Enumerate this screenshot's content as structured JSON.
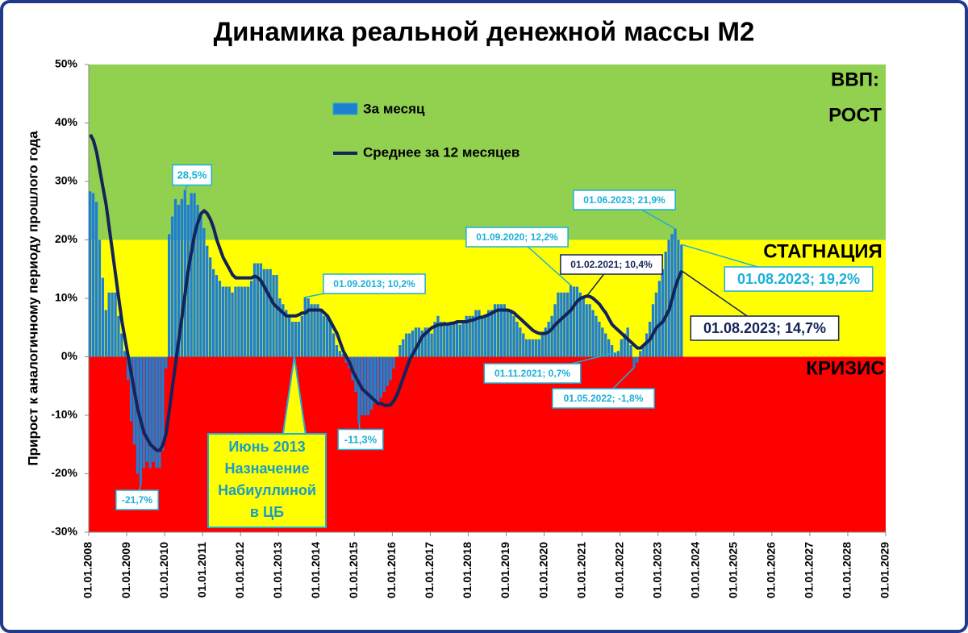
{
  "chart_data": {
    "type": "bar",
    "title": "Динамика реальной денежной массы М2",
    "y_label": "Прирост к аналогичному периоду прошлого года",
    "ylim": [
      -30,
      50
    ],
    "yticks": [
      {
        "value": -30,
        "label": "-30%"
      },
      {
        "value": -20,
        "label": "-20%"
      },
      {
        "value": -10,
        "label": "-10%"
      },
      {
        "value": 0,
        "label": "0%"
      },
      {
        "value": 10,
        "label": "10%"
      },
      {
        "value": 20,
        "label": "20%"
      },
      {
        "value": 30,
        "label": "30%"
      },
      {
        "value": 40,
        "label": "40%"
      },
      {
        "value": 50,
        "label": "50%"
      }
    ],
    "xlim": [
      "2008-01-01",
      "2029-01-01"
    ],
    "xticks": [
      {
        "value": "2008-01-01",
        "label": "01.01.2008"
      },
      {
        "value": "2009-01-01",
        "label": "01.01.2009"
      },
      {
        "value": "2010-01-01",
        "label": "01.01.2010"
      },
      {
        "value": "2011-01-01",
        "label": "01.01.2011"
      },
      {
        "value": "2012-01-01",
        "label": "01.01.2012"
      },
      {
        "value": "2013-01-01",
        "label": "01.01.2013"
      },
      {
        "value": "2014-01-01",
        "label": "01.01.2014"
      },
      {
        "value": "2015-01-01",
        "label": "01.01.2015"
      },
      {
        "value": "2016-01-01",
        "label": "01.01.2016"
      },
      {
        "value": "2017-01-01",
        "label": "01.01.2017"
      },
      {
        "value": "2018-01-01",
        "label": "01.01.2018"
      },
      {
        "value": "2019-01-01",
        "label": "01.01.2019"
      },
      {
        "value": "2020-01-01",
        "label": "01.01.2020"
      },
      {
        "value": "2021-01-01",
        "label": "01.01.2021"
      },
      {
        "value": "2022-01-01",
        "label": "01.01.2022"
      },
      {
        "value": "2023-01-01",
        "label": "01.01.2023"
      },
      {
        "value": "2024-01-01",
        "label": "01.01.2024"
      },
      {
        "value": "2025-01-01",
        "label": "01.01.2025"
      },
      {
        "value": "2026-01-01",
        "label": "01.01.2026"
      },
      {
        "value": "2027-01-01",
        "label": "01.01.2027"
      },
      {
        "value": "2028-01-01",
        "label": "01.01.2028"
      },
      {
        "value": "2029-01-01",
        "label": "01.01.2029"
      }
    ],
    "bands": [
      {
        "from": 20,
        "to": 50,
        "color": "#92d050",
        "labels": [
          "ВВП:",
          "РОСТ"
        ]
      },
      {
        "from": 0,
        "to": 20,
        "color": "#ffff00",
        "labels": [
          "СТАГНАЦИЯ"
        ]
      },
      {
        "from": -30,
        "to": 0,
        "color": "#ff0000",
        "labels": [
          "КРИЗИС"
        ]
      }
    ],
    "x": [
      "2008-01-01",
      "2008-02-01",
      "2008-03-01",
      "2008-04-01",
      "2008-05-01",
      "2008-06-01",
      "2008-07-01",
      "2008-08-01",
      "2008-09-01",
      "2008-10-01",
      "2008-11-01",
      "2008-12-01",
      "2009-01-01",
      "2009-02-01",
      "2009-03-01",
      "2009-04-01",
      "2009-05-01",
      "2009-06-01",
      "2009-07-01",
      "2009-08-01",
      "2009-09-01",
      "2009-10-01",
      "2009-11-01",
      "2009-12-01",
      "2010-01-01",
      "2010-02-01",
      "2010-03-01",
      "2010-04-01",
      "2010-05-01",
      "2010-06-01",
      "2010-07-01",
      "2010-08-01",
      "2010-09-01",
      "2010-10-01",
      "2010-11-01",
      "2010-12-01",
      "2011-01-01",
      "2011-02-01",
      "2011-03-01",
      "2011-04-01",
      "2011-05-01",
      "2011-06-01",
      "2011-07-01",
      "2011-08-01",
      "2011-09-01",
      "2011-10-01",
      "2011-11-01",
      "2011-12-01",
      "2012-01-01",
      "2012-02-01",
      "2012-03-01",
      "2012-04-01",
      "2012-05-01",
      "2012-06-01",
      "2012-07-01",
      "2012-08-01",
      "2012-09-01",
      "2012-10-01",
      "2012-11-01",
      "2012-12-01",
      "2013-01-01",
      "2013-02-01",
      "2013-03-01",
      "2013-04-01",
      "2013-05-01",
      "2013-06-01",
      "2013-07-01",
      "2013-08-01",
      "2013-09-01",
      "2013-10-01",
      "2013-11-01",
      "2013-12-01",
      "2014-01-01",
      "2014-02-01",
      "2014-03-01",
      "2014-04-01",
      "2014-05-01",
      "2014-06-01",
      "2014-07-01",
      "2014-08-01",
      "2014-09-01",
      "2014-10-01",
      "2014-11-01",
      "2014-12-01",
      "2015-01-01",
      "2015-02-01",
      "2015-03-01",
      "2015-04-01",
      "2015-05-01",
      "2015-06-01",
      "2015-07-01",
      "2015-08-01",
      "2015-09-01",
      "2015-10-01",
      "2015-11-01",
      "2015-12-01",
      "2016-01-01",
      "2016-02-01",
      "2016-03-01",
      "2016-04-01",
      "2016-05-01",
      "2016-06-01",
      "2016-07-01",
      "2016-08-01",
      "2016-09-01",
      "2016-10-01",
      "2016-11-01",
      "2016-12-01",
      "2017-01-01",
      "2017-02-01",
      "2017-03-01",
      "2017-04-01",
      "2017-05-01",
      "2017-06-01",
      "2017-07-01",
      "2017-08-01",
      "2017-09-01",
      "2017-10-01",
      "2017-11-01",
      "2017-12-01",
      "2018-01-01",
      "2018-02-01",
      "2018-03-01",
      "2018-04-01",
      "2018-05-01",
      "2018-06-01",
      "2018-07-01",
      "2018-08-01",
      "2018-09-01",
      "2018-10-01",
      "2018-11-01",
      "2018-12-01",
      "2019-01-01",
      "2019-02-01",
      "2019-03-01",
      "2019-04-01",
      "2019-05-01",
      "2019-06-01",
      "2019-07-01",
      "2019-08-01",
      "2019-09-01",
      "2019-10-01",
      "2019-11-01",
      "2019-12-01",
      "2020-01-01",
      "2020-02-01",
      "2020-03-01",
      "2020-04-01",
      "2020-05-01",
      "2020-06-01",
      "2020-07-01",
      "2020-08-01",
      "2020-09-01",
      "2020-10-01",
      "2020-11-01",
      "2020-12-01",
      "2021-01-01",
      "2021-02-01",
      "2021-03-01",
      "2021-04-01",
      "2021-05-01",
      "2021-06-01",
      "2021-07-01",
      "2021-08-01",
      "2021-09-01",
      "2021-10-01",
      "2021-11-01",
      "2021-12-01",
      "2022-01-01",
      "2022-02-01",
      "2022-03-01",
      "2022-04-01",
      "2022-05-01",
      "2022-06-01",
      "2022-07-01",
      "2022-08-01",
      "2022-09-01",
      "2022-10-01",
      "2022-11-01",
      "2022-12-01",
      "2023-01-01",
      "2023-02-01",
      "2023-03-01",
      "2023-04-01",
      "2023-05-01",
      "2023-06-01",
      "2023-07-01",
      "2023-08-01"
    ],
    "series": [
      {
        "name": "За месяц",
        "type": "bar",
        "color": "#1f7fd0",
        "values": [
          28.3,
          28,
          26.5,
          20,
          13.5,
          8,
          11,
          11,
          11,
          7,
          4,
          1,
          -4,
          -11,
          -15,
          -20,
          -21.7,
          -19,
          -18,
          -19,
          -18,
          -19,
          -19,
          -16,
          -2,
          21,
          24,
          27,
          26,
          27,
          28.5,
          26,
          28,
          28,
          26,
          24,
          22,
          19,
          17,
          15,
          14,
          13,
          12,
          12,
          12,
          11,
          12,
          12,
          12,
          12,
          12,
          13,
          16,
          16,
          16,
          15,
          15,
          15,
          14,
          14,
          10,
          9,
          8,
          7,
          6,
          6,
          6,
          7,
          10.2,
          10,
          9,
          9,
          9,
          8,
          7,
          7,
          6,
          4,
          2,
          1,
          0.5,
          -1,
          -2,
          -4,
          -6,
          -11.3,
          -10,
          -10,
          -10,
          -9,
          -8,
          -8,
          -7,
          -6,
          -5,
          -4,
          -2,
          0,
          2,
          3,
          4,
          4,
          4.5,
          5,
          5,
          4.5,
          5,
          5,
          4,
          6,
          7,
          6,
          6,
          5.5,
          6,
          6,
          6,
          5.5,
          6,
          7,
          7,
          7,
          8,
          8,
          7,
          7,
          8,
          8,
          9,
          9,
          9,
          9,
          8,
          8,
          7,
          6,
          5,
          4,
          3,
          3,
          3,
          3,
          3,
          4,
          5,
          6,
          7,
          9,
          11,
          11,
          11,
          11,
          12.2,
          12,
          12,
          11,
          10,
          9,
          9,
          8,
          7,
          6,
          5,
          4,
          3,
          2,
          0.7,
          1,
          3,
          4,
          5,
          2,
          -1.8,
          -1,
          1,
          2,
          4,
          6,
          9,
          11,
          13,
          15,
          18,
          20,
          21,
          21.9,
          20,
          19.2
        ]
      },
      {
        "name": "Среднее за 12 месяцев",
        "type": "line",
        "color": "#14235a",
        "values": [
          38,
          37,
          35,
          32,
          29,
          26,
          22,
          18,
          14,
          10,
          6,
          3,
          0,
          -3,
          -6,
          -9,
          -11,
          -13,
          -14,
          -15,
          -15.5,
          -16,
          -16,
          -15,
          -13,
          -9,
          -5,
          -1,
          3,
          7,
          11,
          15,
          18,
          21,
          23,
          24.5,
          25,
          24.5,
          23.5,
          22,
          20,
          18.5,
          17,
          16,
          15,
          14,
          13.5,
          13.5,
          13.5,
          13.5,
          13.5,
          13.5,
          13.8,
          13.5,
          13,
          12,
          11,
          10,
          9,
          8.5,
          8,
          7.5,
          7,
          7,
          7,
          7,
          7.2,
          7.5,
          7.5,
          8,
          8,
          8,
          8,
          8,
          7.5,
          7,
          6,
          5,
          4,
          2.5,
          1,
          0,
          -1,
          -2.5,
          -3.5,
          -4.5,
          -5.5,
          -6,
          -6.5,
          -7,
          -7.5,
          -8,
          -8,
          -8.3,
          -8.3,
          -8.2,
          -7.5,
          -6.5,
          -5,
          -3.5,
          -2,
          -0.5,
          0.5,
          1.5,
          2.5,
          3.5,
          4,
          4.5,
          5,
          5.2,
          5.5,
          5.5,
          5.6,
          5.6,
          5.7,
          5.8,
          6,
          6,
          6,
          6,
          6.2,
          6.3,
          6.5,
          6.7,
          6.8,
          7,
          7.2,
          7.5,
          7.8,
          8,
          8,
          8,
          8,
          7.8,
          7.5,
          7,
          6.5,
          6,
          5.5,
          5,
          4.5,
          4.2,
          4,
          4,
          4,
          4.3,
          4.8,
          5.5,
          6,
          6.5,
          7,
          7.5,
          8,
          8.8,
          9.5,
          10,
          10.2,
          10.4,
          10.3,
          10,
          9.5,
          9,
          8.2,
          7.5,
          6.5,
          5.5,
          5,
          4.5,
          4,
          3.5,
          3,
          2.5,
          2,
          1.5,
          1.5,
          2,
          2.5,
          3,
          4,
          5,
          5.5,
          6,
          7,
          8,
          10,
          12,
          13.5,
          14.7
        ]
      }
    ],
    "annotations": [
      {
        "text": "-21,7%",
        "x": "2009-05-01",
        "y": -21.7,
        "color": "#1ab0d8"
      },
      {
        "text": "28,5%",
        "x": "2010-07-01",
        "y": 28.5,
        "color": "#1ab0d8"
      },
      {
        "text": "01.09.2013; 10,2%",
        "x": "2013-09-01",
        "y": 10.2,
        "color": "#1ab0d8"
      },
      {
        "text": "-11,3%",
        "x": "2015-02-01",
        "y": -11.3,
        "color": "#1ab0d8"
      },
      {
        "text": "01.09.2020; 12,2%",
        "x": "2020-09-01",
        "y": 12.2,
        "color": "#1ab0d8"
      },
      {
        "text": "01.06.2023; 21,9%",
        "x": "2023-06-01",
        "y": 21.9,
        "color": "#1ab0d8"
      },
      {
        "text": "01.02.2021; 10,4%",
        "x": "2021-02-01",
        "y": 10.4,
        "color": "#14235a"
      },
      {
        "text": "01.11.2021; 0,7%",
        "x": "2021-11-01",
        "y": 0.7,
        "color": "#1ab0d8"
      },
      {
        "text": "01.05.2022; -1,8%",
        "x": "2022-05-01",
        "y": -1.8,
        "color": "#1ab0d8"
      },
      {
        "text": "01.08.2023; 19,2%",
        "x": "2023-08-01",
        "y": 19.2,
        "color": "#1ab0d8"
      },
      {
        "text": "01.08.2023; 14,7%",
        "x": "2023-08-01",
        "y": 14.7,
        "color": "#14235a"
      }
    ],
    "note": {
      "lines": [
        "Июнь 2013",
        "Назначение",
        "Набиуллиной",
        "в ЦБ"
      ],
      "x": "2013-06-01",
      "y": 0
    }
  }
}
